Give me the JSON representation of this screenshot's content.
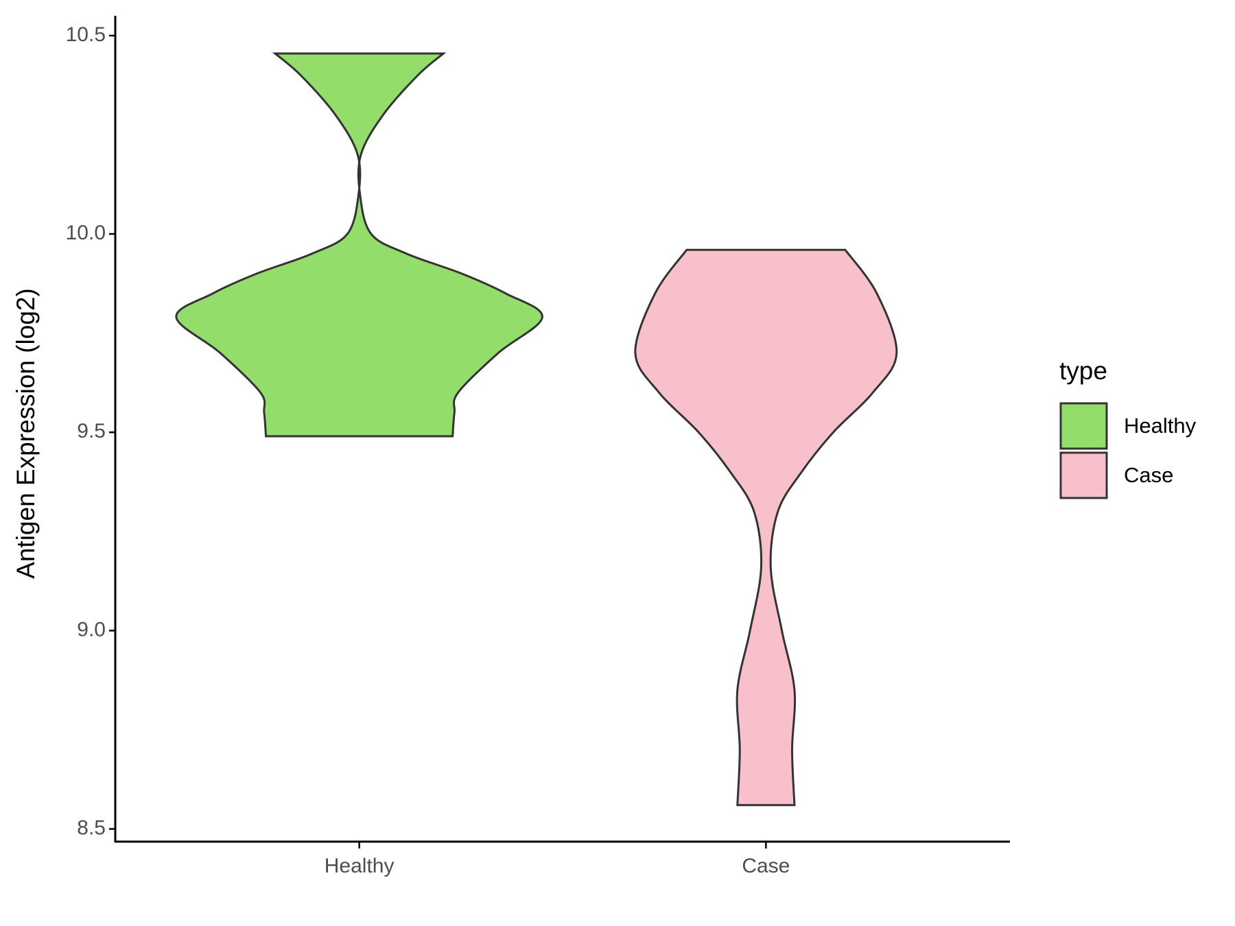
{
  "chart_data": {
    "type": "violin",
    "y_label": "Antigen Expression (log2)",
    "categories": [
      "Healthy",
      "Case"
    ],
    "ylim": [
      8.468,
      10.55
    ],
    "yticks": [
      8.5,
      {
        "value": 9,
        "label": "9.0"
      },
      9.5,
      {
        "value": 10,
        "label": "10.0"
      },
      10.5
    ],
    "outline_color": "#333333",
    "legend_title": "type",
    "legend": "right",
    "series": [
      {
        "name": "Healthy",
        "color": "#93dd6a",
        "y": [
          9.49,
          9.55,
          9.6,
          9.7,
          9.79,
          9.85,
          9.9,
          9.95,
          10.0,
          10.1,
          10.2,
          10.3,
          10.4,
          10.455
        ],
        "density": [
          0.51,
          0.52,
          0.54,
          0.76,
          1.0,
          0.8,
          0.56,
          0.26,
          0.065,
          0.004,
          0.009,
          0.13,
          0.32,
          0.46
        ]
      },
      {
        "name": "Case",
        "color": "#f7c0cb",
        "y": [
          8.56,
          8.7,
          8.85,
          9.0,
          9.16,
          9.3,
          9.4,
          9.5,
          9.6,
          9.7,
          9.85,
          9.96
        ],
        "density": [
          0.156,
          0.143,
          0.156,
          0.087,
          0.026,
          0.065,
          0.195,
          0.368,
          0.584,
          0.714,
          0.606,
          0.433
        ]
      }
    ]
  }
}
